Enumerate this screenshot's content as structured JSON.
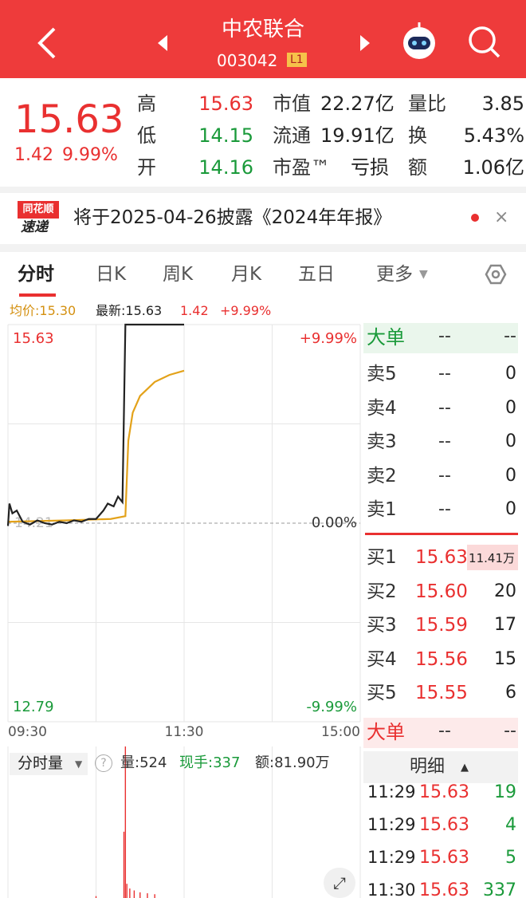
{
  "header": {
    "title": "中农联合",
    "code": "003042",
    "badge": "L1"
  },
  "quote": {
    "price": "15.63",
    "change": "1.42",
    "change_pct": "9.99%",
    "stats": [
      [
        {
          "label": "高",
          "value": "15.63"
        },
        {
          "label": "市值",
          "value": "22.27亿"
        },
        {
          "label": "量比",
          "value": "3.85"
        }
      ],
      [
        {
          "label": "低",
          "value": "14.15"
        },
        {
          "label": "流通",
          "value": "19.91亿"
        },
        {
          "label": "换",
          "value": "5.43%"
        }
      ],
      [
        {
          "label": "开",
          "value": "14.16"
        },
        {
          "label": "市盈™",
          "value": "亏损"
        },
        {
          "label": "额",
          "value": "1.06亿"
        }
      ]
    ]
  },
  "news": {
    "badge_top": "同花顺",
    "badge_bottom": "速递",
    "text": "将于2025-04-26披露《2024年年报》"
  },
  "tabs": [
    "分时",
    "日K",
    "周K",
    "月K",
    "五日",
    "更多"
  ],
  "info": {
    "avg": "均价:15.30",
    "latest": "最新:15.63",
    "change": "1.42",
    "change_pct": "+9.99%"
  },
  "chart_data": {
    "type": "line",
    "xlim": [
      0,
      240
    ],
    "xticks": [
      {
        "value": 0,
        "label": "09:30"
      },
      {
        "value": 120,
        "label": "11:30"
      },
      {
        "value": 240,
        "label": "15:00"
      }
    ],
    "ylim": [
      12.79,
      15.63
    ],
    "prev_close": 14.21,
    "pct_top": "+9.99%",
    "pct_mid": "0.00%",
    "pct_bottom": "-9.99%",
    "series": [
      {
        "color": "#222222",
        "x": [
          0,
          1,
          3,
          6,
          10,
          15,
          20,
          25,
          30,
          35,
          40,
          45,
          50,
          55,
          60,
          65,
          68,
          72,
          75,
          78,
          80,
          120
        ],
        "values": [
          14.19,
          14.35,
          14.28,
          14.3,
          14.22,
          14.2,
          14.23,
          14.21,
          14.2,
          14.22,
          14.21,
          14.23,
          14.22,
          14.24,
          14.24,
          14.3,
          14.35,
          14.33,
          14.4,
          14.36,
          15.63,
          15.63
        ]
      },
      {
        "color": "#e3a21a",
        "x": [
          0,
          40,
          70,
          80,
          82,
          85,
          90,
          100,
          110,
          120
        ],
        "values": [
          14.22,
          14.23,
          14.24,
          14.26,
          14.8,
          15.0,
          15.12,
          15.22,
          15.27,
          15.3
        ]
      }
    ]
  },
  "volume_info": {
    "selector": "分时量",
    "vol": "量:524",
    "hand": "现手:337",
    "amount": "额:81.90万"
  },
  "volume_chart": {
    "type": "bar",
    "color": "#e93030",
    "xlim": [
      0,
      240
    ],
    "ylim": [
      0,
      1600
    ],
    "x": [
      60,
      79,
      80,
      81,
      83,
      86,
      90,
      95,
      100
    ],
    "values": [
      20,
      700,
      1600,
      150,
      100,
      80,
      60,
      50,
      40
    ]
  },
  "orderbook": {
    "big_top": {
      "label": "大单",
      "a": "--",
      "b": "--"
    },
    "sell": [
      {
        "label": "卖5",
        "price": "--",
        "vol": "0"
      },
      {
        "label": "卖4",
        "price": "--",
        "vol": "0"
      },
      {
        "label": "卖3",
        "price": "--",
        "vol": "0"
      },
      {
        "label": "卖2",
        "price": "--",
        "vol": "0"
      },
      {
        "label": "卖1",
        "price": "--",
        "vol": "0"
      }
    ],
    "buy": [
      {
        "label": "买1",
        "price": "15.63",
        "vol": "11.41万"
      },
      {
        "label": "买2",
        "price": "15.60",
        "vol": "20"
      },
      {
        "label": "买3",
        "price": "15.59",
        "vol": "17"
      },
      {
        "label": "买4",
        "price": "15.56",
        "vol": "15"
      },
      {
        "label": "买5",
        "price": "15.55",
        "vol": "6"
      }
    ],
    "big_bottom": {
      "label": "大单",
      "a": "--",
      "b": "--"
    },
    "detail_title": "明细",
    "ticks": [
      {
        "time": "11:29",
        "price": "15.63",
        "vol": "19"
      },
      {
        "time": "11:29",
        "price": "15.63",
        "vol": "4"
      },
      {
        "time": "11:29",
        "price": "15.63",
        "vol": "5"
      },
      {
        "time": "11:30",
        "price": "15.63",
        "vol": "337"
      }
    ]
  }
}
